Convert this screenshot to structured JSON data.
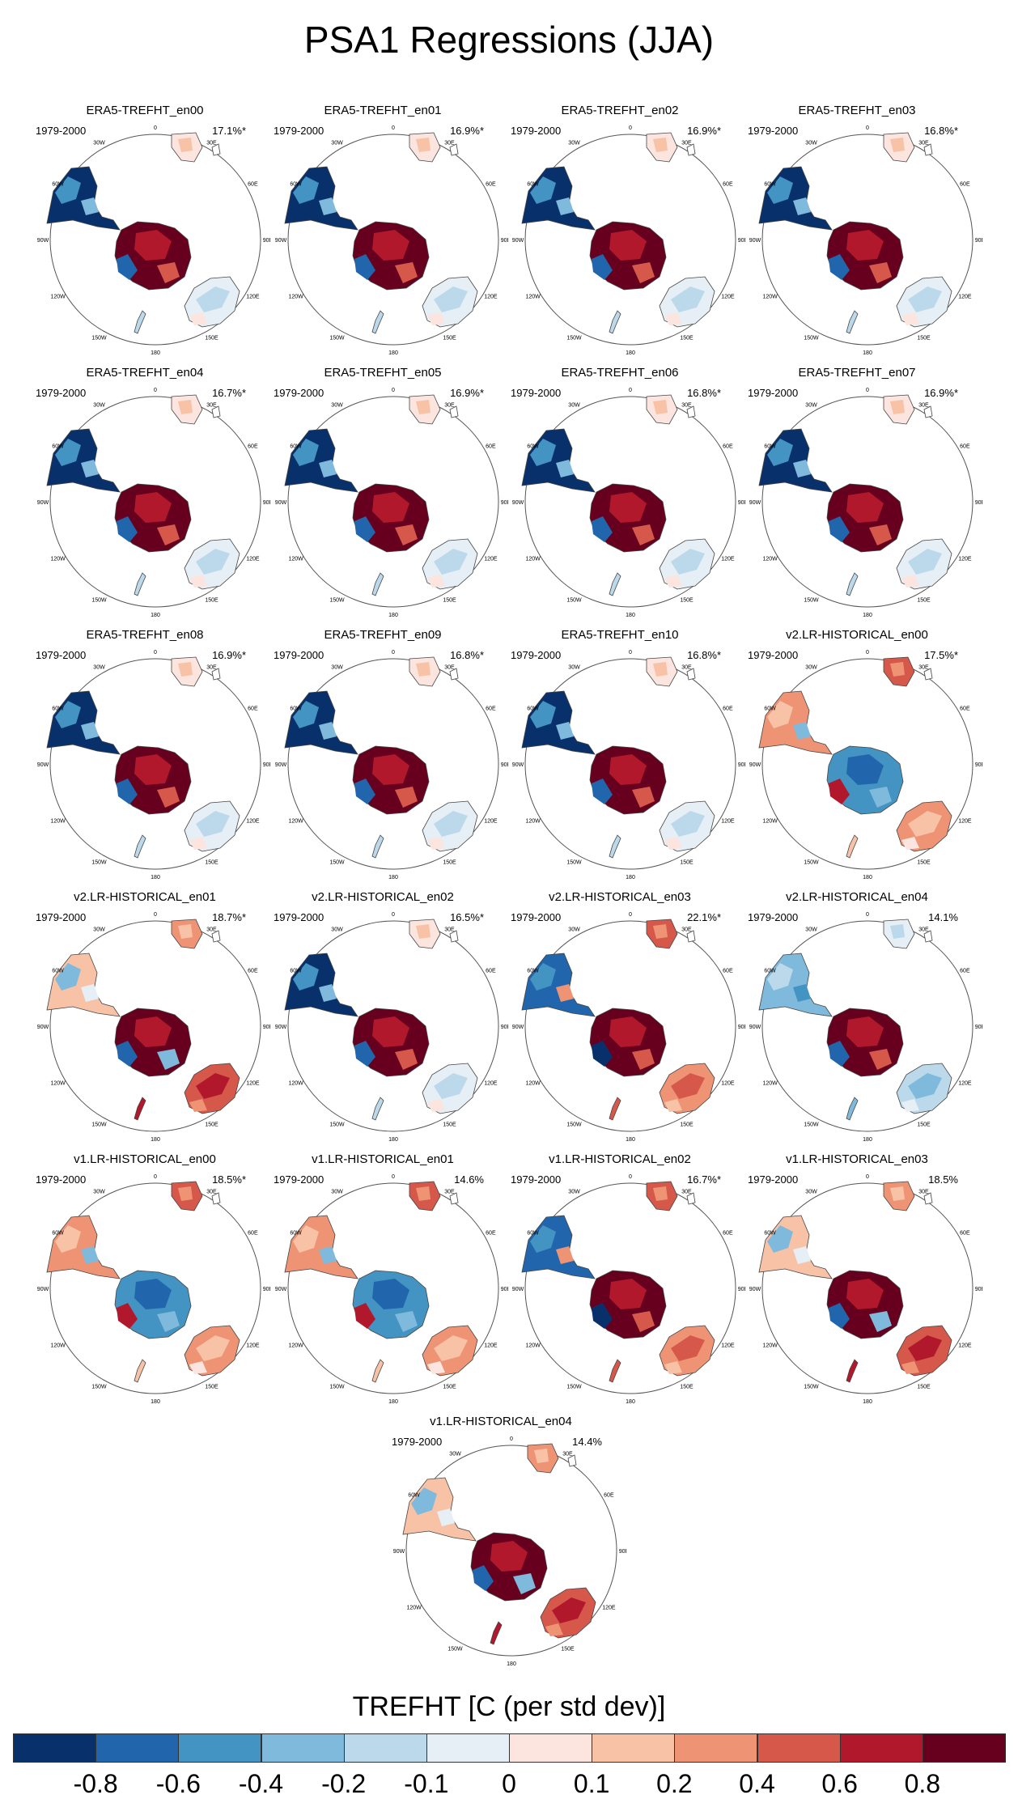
{
  "title": "PSA1 Regressions (JJA)",
  "period": "1979-2000",
  "lon_labels": [
    "0",
    "30E",
    "60E",
    "90E",
    "120E",
    "150E",
    "180",
    "150W",
    "120W",
    "90W",
    "60W",
    "30W"
  ],
  "panels": [
    {
      "name": "ERA5-TREFHT_en00",
      "pct": "17.1%*",
      "pattern": "era5"
    },
    {
      "name": "ERA5-TREFHT_en01",
      "pct": "16.9%*",
      "pattern": "era5"
    },
    {
      "name": "ERA5-TREFHT_en02",
      "pct": "16.9%*",
      "pattern": "era5"
    },
    {
      "name": "ERA5-TREFHT_en03",
      "pct": "16.8%*",
      "pattern": "era5"
    },
    {
      "name": "ERA5-TREFHT_en04",
      "pct": "16.7%*",
      "pattern": "era5"
    },
    {
      "name": "ERA5-TREFHT_en05",
      "pct": "16.9%*",
      "pattern": "era5"
    },
    {
      "name": "ERA5-TREFHT_en06",
      "pct": "16.8%*",
      "pattern": "era5"
    },
    {
      "name": "ERA5-TREFHT_en07",
      "pct": "16.9%*",
      "pattern": "era5"
    },
    {
      "name": "ERA5-TREFHT_en08",
      "pct": "16.9%*",
      "pattern": "era5"
    },
    {
      "name": "ERA5-TREFHT_en09",
      "pct": "16.8%*",
      "pattern": "era5"
    },
    {
      "name": "ERA5-TREFHT_en10",
      "pct": "16.8%*",
      "pattern": "era5"
    },
    {
      "name": "v2.LR-HISTORICAL_en00",
      "pct": "17.5%*",
      "pattern": "modelA"
    },
    {
      "name": "v2.LR-HISTORICAL_en01",
      "pct": "18.7%*",
      "pattern": "modelB"
    },
    {
      "name": "v2.LR-HISTORICAL_en02",
      "pct": "16.5%*",
      "pattern": "era5"
    },
    {
      "name": "v2.LR-HISTORICAL_en03",
      "pct": "22.1%*",
      "pattern": "modelC"
    },
    {
      "name": "v2.LR-HISTORICAL_en04",
      "pct": "14.1%",
      "pattern": "modelD"
    },
    {
      "name": "v1.LR-HISTORICAL_en00",
      "pct": "18.5%*",
      "pattern": "modelA"
    },
    {
      "name": "v1.LR-HISTORICAL_en01",
      "pct": "14.6%",
      "pattern": "modelA"
    },
    {
      "name": "v1.LR-HISTORICAL_en02",
      "pct": "16.7%*",
      "pattern": "modelC"
    },
    {
      "name": "v1.LR-HISTORICAL_en03",
      "pct": "18.5%",
      "pattern": "modelB"
    },
    {
      "name": "v1.LR-HISTORICAL_en04",
      "pct": "14.4%",
      "pattern": "modelB"
    }
  ],
  "colorbar": {
    "title": "TREFHT [C (per std dev)]",
    "colors": [
      "#08306b",
      "#2166ac",
      "#4393c3",
      "#7fbadc",
      "#bcd9eb",
      "#e6eff5",
      "#fbe5de",
      "#f8c2a7",
      "#ee9475",
      "#d6584b",
      "#b2182b",
      "#67001f"
    ],
    "labels": [
      "-0.8",
      "-0.6",
      "-0.4",
      "-0.2",
      "-0.1",
      "0",
      "0.1",
      "0.2",
      "0.4",
      "0.6",
      "0.8"
    ]
  }
}
